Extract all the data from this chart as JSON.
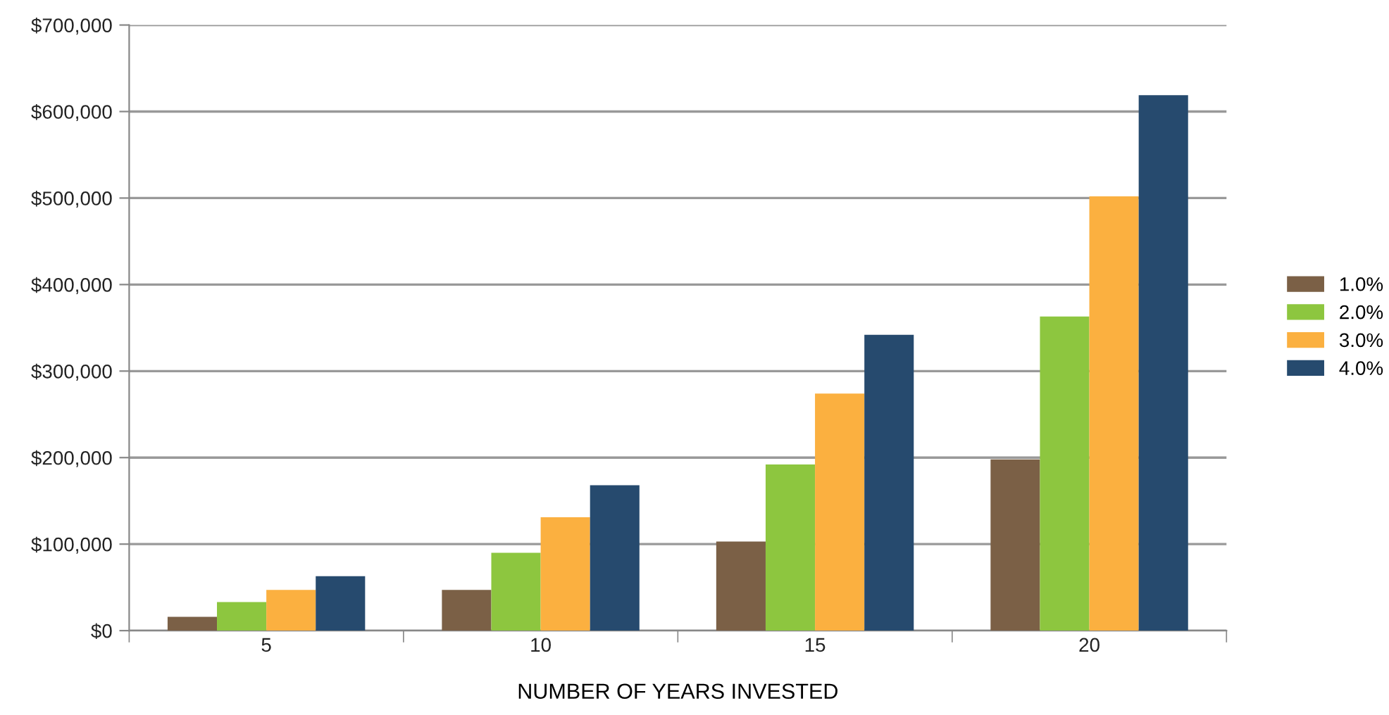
{
  "chart_data": {
    "type": "bar",
    "xlabel": "NUMBER OF YEARS INVESTED",
    "categories": [
      "5",
      "10",
      "15",
      "20"
    ],
    "series": [
      {
        "name": "1.0%",
        "color": "#7b6046",
        "values": [
          16000,
          47000,
          103000,
          198000
        ]
      },
      {
        "name": "2.0%",
        "color": "#8dc63f",
        "values": [
          33000,
          90000,
          192000,
          363000
        ]
      },
      {
        "name": "3.0%",
        "color": "#fbb040",
        "values": [
          47000,
          131000,
          274000,
          502000
        ]
      },
      {
        "name": "4.0%",
        "color": "#264a6e",
        "values": [
          63000,
          168000,
          342000,
          619000
        ]
      }
    ],
    "ylim": [
      0,
      700000
    ],
    "yticks": [
      {
        "value": 0,
        "label": "$0"
      },
      {
        "value": 100000,
        "label": "$100,000"
      },
      {
        "value": 200000,
        "label": "$200,000"
      },
      {
        "value": 300000,
        "label": "$300,000"
      },
      {
        "value": 400000,
        "label": "$400,000"
      },
      {
        "value": 500000,
        "label": "$500,000"
      },
      {
        "value": 600000,
        "label": "$600,000"
      },
      {
        "value": 700000,
        "label": "$700,000"
      }
    ],
    "grid": "y",
    "legend": "right"
  }
}
